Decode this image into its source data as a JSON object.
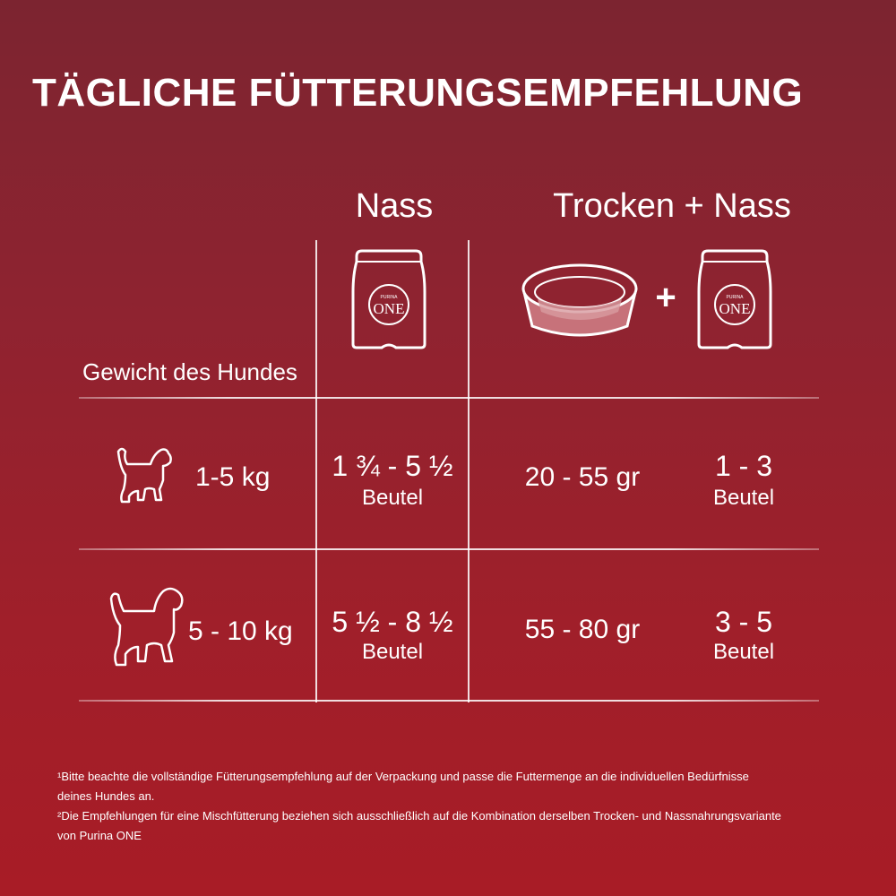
{
  "title": "TÄGLICHE FÜTTERUNGSEMPFEHLUNG",
  "columns": {
    "wet": "Nass",
    "dry_wet": "Trocken + Nass",
    "plus": "+",
    "weight": "Gewicht des Hundes"
  },
  "brand": {
    "pouch_brand_small": "PURINA",
    "pouch_brand_large": "ONE"
  },
  "rows": [
    {
      "weight": "1-5 kg",
      "wet_amount": "1 ¾ - 5 ½",
      "wet_unit": "Beutel",
      "dry_amount": "20 - 55 gr",
      "mix_amount": "1 - 3",
      "mix_unit": "Beutel",
      "icon": "small-dog-icon"
    },
    {
      "weight": "5 - 10 kg",
      "wet_amount": "5 ½ - 8 ½",
      "wet_unit": "Beutel",
      "dry_amount": "55 - 80 gr",
      "mix_amount": "3 - 5",
      "mix_unit": "Beutel",
      "icon": "medium-dog-icon"
    }
  ],
  "footnotes": {
    "line1": "¹Bitte beachte die vollständige Fütterungsempfehlung auf der Verpackung und passe die Futtermenge an die individuellen Bedürfnisse",
    "line2": "deines Hundes an.",
    "line3": "²Die Empfehlungen für eine Mischfütterung beziehen sich ausschließlich auf die Kombination derselben Trocken- und Nassnahrungsvariante",
    "line4": "von Purina ONE"
  },
  "colors": {
    "background_top": "#7c2430",
    "background_bottom": "#a81c26",
    "foreground": "#ffffff"
  }
}
